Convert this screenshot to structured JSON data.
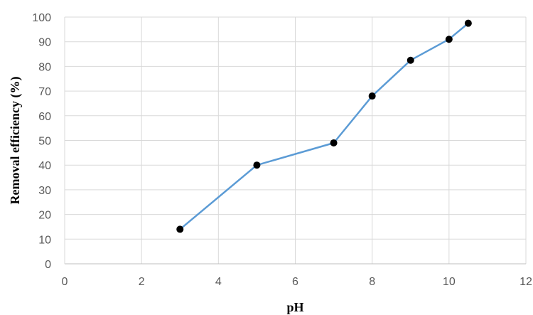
{
  "chart_data": {
    "type": "line",
    "title": "",
    "xlabel": "pH",
    "ylabel": "Removal efficiency (%)",
    "xlim": [
      0,
      12
    ],
    "ylim": [
      0,
      100
    ],
    "x_ticks": [
      0,
      2,
      4,
      6,
      8,
      10,
      12
    ],
    "y_ticks": [
      0,
      10,
      20,
      30,
      40,
      50,
      60,
      70,
      80,
      90,
      100
    ],
    "grid": true,
    "legend": "none",
    "series": [
      {
        "x": [
          3,
          5,
          7,
          8,
          9,
          10,
          10.5
        ],
        "y": [
          14,
          40,
          49,
          68,
          82.5,
          91,
          97.5
        ],
        "line_color": "#5b9bd5",
        "marker_color": "#000000"
      }
    ]
  }
}
